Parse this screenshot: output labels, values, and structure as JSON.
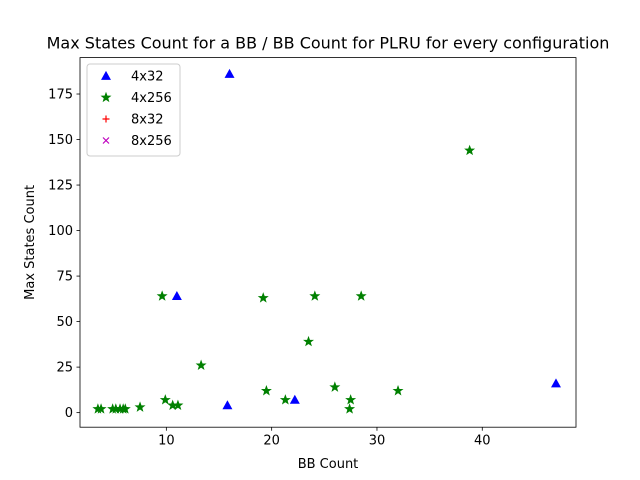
{
  "chart_data": {
    "type": "scatter",
    "title": "Max States Count for a BB / BB Count for PLRU for every configuration",
    "xlabel": "BB Count",
    "ylabel": "Max States Count",
    "xlim": [
      1.8,
      48.9
    ],
    "ylim": [
      -8,
      195
    ],
    "xticks": [
      10,
      20,
      30,
      40
    ],
    "yticks": [
      0,
      25,
      50,
      75,
      100,
      125,
      150,
      175
    ],
    "grid": false,
    "legend_position": "top-left",
    "series": [
      {
        "name": "4x32",
        "marker": "triangle",
        "color": "#0000ff",
        "points": [
          [
            16,
            186
          ],
          [
            11,
            64
          ],
          [
            15.8,
            4
          ],
          [
            22.2,
            7
          ],
          [
            47,
            16
          ]
        ]
      },
      {
        "name": "4x256",
        "marker": "star",
        "color": "#008000",
        "points": [
          [
            38.8,
            144
          ],
          [
            9.6,
            64
          ],
          [
            19.2,
            63
          ],
          [
            24.1,
            64
          ],
          [
            28.5,
            64
          ],
          [
            23.5,
            39
          ],
          [
            13.3,
            26
          ],
          [
            26,
            14
          ],
          [
            19.5,
            12
          ],
          [
            32,
            12
          ],
          [
            21.3,
            7
          ],
          [
            27.5,
            7
          ],
          [
            9.9,
            7
          ],
          [
            10.6,
            4
          ],
          [
            11.1,
            4
          ],
          [
            7.5,
            3
          ],
          [
            3.5,
            2
          ],
          [
            3.8,
            2
          ],
          [
            4.9,
            2
          ],
          [
            5.2,
            2
          ],
          [
            5.6,
            2
          ],
          [
            5.9,
            2
          ],
          [
            6.1,
            2
          ],
          [
            27.4,
            2
          ]
        ]
      },
      {
        "name": "8x32",
        "marker": "plus",
        "color": "#ff0000",
        "points": []
      },
      {
        "name": "8x256",
        "marker": "x",
        "color": "#bf00bf",
        "points": []
      }
    ]
  }
}
